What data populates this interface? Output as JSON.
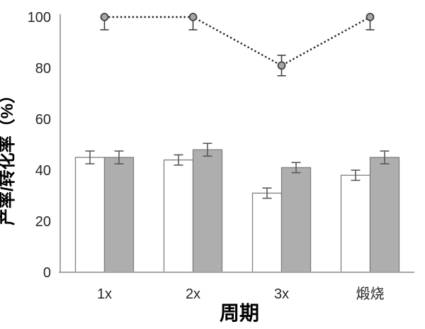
{
  "chart_data": {
    "type": "bar",
    "subtype": "grouped-bars-with-dotted-line-overlay",
    "title": "",
    "xlabel": "周期",
    "ylabel": "产率/转化率（%）",
    "categories": [
      "1x",
      "2x",
      "3x",
      "煅烧"
    ],
    "ylim": [
      0,
      100
    ],
    "yticks": [
      0,
      20,
      40,
      60,
      80,
      100
    ],
    "grid": false,
    "legend": "none",
    "series": [
      {
        "name": "white-bars",
        "type": "bar",
        "values": [
          45,
          44,
          31,
          38
        ],
        "errors": [
          2.5,
          2,
          2,
          2
        ],
        "fill": "#ffffff",
        "stroke": "#7f7f7f"
      },
      {
        "name": "gray-bars",
        "type": "bar",
        "values": [
          45,
          48,
          41,
          45
        ],
        "errors": [
          2.5,
          2.5,
          2,
          2.5
        ],
        "fill": "#aeaeae",
        "stroke": "#7f7f7f"
      },
      {
        "name": "dotted-line",
        "type": "line",
        "values": [
          100,
          100,
          81,
          100
        ],
        "errors_up": [
          0,
          0,
          4,
          0
        ],
        "errors_down": [
          5,
          5,
          4,
          5
        ],
        "line_color": "#262626",
        "marker": "circle",
        "marker_fill": "#a6a6a6",
        "marker_stroke": "#404040"
      }
    ],
    "colors": {
      "axis_line": "#a6a6a6",
      "error_bar": "#595959",
      "text": "#262626",
      "background": "#ffffff"
    }
  }
}
